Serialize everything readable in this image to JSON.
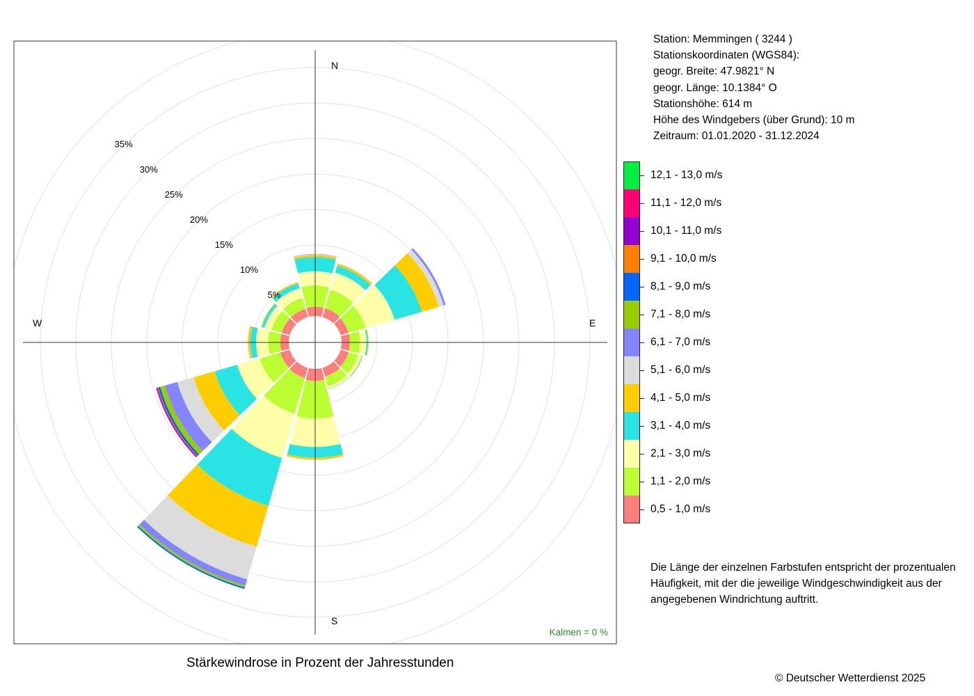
{
  "station": {
    "line_station": "Station:  Memmingen  ( 3244 )",
    "line_coords_heading": "Stationskoordinaten (WGS84):",
    "line_lat": "geogr. Breite: 47.9821° N",
    "line_lon": "geogr. Länge: 10.1384° O",
    "line_height": "Stationshöhe: 614 m",
    "line_sensor": "Höhe des Windgebers (über Grund): 10 m",
    "line_period": "Zeitraum: 01.01.2020 - 31.12.2024"
  },
  "legend": [
    {
      "label": "12,1 - 13,0 m/s",
      "color": "#00ee44"
    },
    {
      "label": "11,1 - 12,0 m/s",
      "color": "#ff0077"
    },
    {
      "label": "10,1 - 11,0 m/s",
      "color": "#9400d3"
    },
    {
      "label": "9,1 - 10,0 m/s",
      "color": "#ff8000"
    },
    {
      "label": "8,1 - 9,0 m/s",
      "color": "#0066ff"
    },
    {
      "label": "7,1 - 8,0 m/s",
      "color": "#99cc00"
    },
    {
      "label": "6,1 - 7,0 m/s",
      "color": "#8585ff"
    },
    {
      "label": "5,1 - 6,0 m/s",
      "color": "#dcdcdc"
    },
    {
      "label": "4,1 - 5,0 m/s",
      "color": "#ffcc00"
    },
    {
      "label": "3,1 - 4,0 m/s",
      "color": "#2ae3e3"
    },
    {
      "label": "2,1 - 3,0 m/s",
      "color": "#ffffaa"
    },
    {
      "label": "1,1 - 2,0 m/s",
      "color": "#bbff33"
    },
    {
      "label": "0,5 - 1,0 m/s",
      "color": "#ff7f7f"
    }
  ],
  "note": "Die Länge der einzelnen Farbstufen entspricht der prozentualen Häufigkeit, mit der die jeweilige Windgeschwindigkeit aus der angegebenen Windrichtung auftritt.",
  "title": "Stärkewindrose in Prozent der Jahresstunden",
  "calm": "Kalmen  =  0 %",
  "copyright": "© Deutscher Wetterdienst  2025",
  "compass": {
    "n": "N",
    "e": "E",
    "s": "S",
    "w": "W"
  },
  "chart_data": {
    "type": "polar-stacked-bar",
    "unit": "%",
    "radial_ticks": [
      "5%",
      "10%",
      "15%",
      "20%",
      "25%",
      "30%",
      "35%"
    ],
    "radial_tick_values": [
      5,
      10,
      15,
      20,
      25,
      30,
      35
    ],
    "radial_max": 40,
    "grid": true,
    "sector_width_deg": 30,
    "directions_deg": [
      0,
      30,
      60,
      90,
      120,
      150,
      180,
      210,
      240,
      270,
      300,
      330
    ],
    "speed_classes": [
      "0,5 - 1,0 m/s",
      "1,1 - 2,0 m/s",
      "2,1 - 3,0 m/s",
      "3,1 - 4,0 m/s",
      "4,1 - 5,0 m/s",
      "5,1 - 6,0 m/s",
      "6,1 - 7,0 m/s",
      "7,1 - 8,0 m/s",
      "8,1 - 9,0 m/s",
      "9,1 - 10,0 m/s",
      "10,1 - 11,0 m/s",
      "11,1 - 12,0 m/s",
      "12,1 - 13,0 m/s"
    ],
    "values": [
      [
        1.3,
        3.0,
        2.0,
        2.0,
        0.3,
        0.1,
        0.05,
        0,
        0,
        0,
        0,
        0,
        0
      ],
      [
        1.3,
        2.7,
        2.5,
        1.0,
        0.3,
        0.1,
        0,
        0,
        0,
        0,
        0,
        0,
        0
      ],
      [
        1.2,
        2.5,
        4.2,
        4.0,
        2.5,
        0.7,
        0.3,
        0,
        0,
        0,
        0,
        0,
        0
      ],
      [
        1.2,
        1.4,
        0.9,
        0.2,
        0.1,
        0.05,
        0,
        0,
        0,
        0,
        0,
        0,
        0
      ],
      [
        1.2,
        1.4,
        0.5,
        0.1,
        0.05,
        0,
        0,
        0,
        0,
        0,
        0,
        0,
        0
      ],
      [
        1.3,
        1.4,
        0.4,
        0.05,
        0,
        0,
        0,
        0,
        0,
        0,
        0,
        0,
        0
      ],
      [
        1.7,
        5.3,
        4.0,
        1.5,
        0.3,
        0.05,
        0,
        0,
        0,
        0,
        0,
        0,
        0
      ],
      [
        1.5,
        5.2,
        6.5,
        7.0,
        6.0,
        4.8,
        0.9,
        0.3,
        0.2,
        0,
        0,
        0,
        0
      ],
      [
        1.4,
        3.0,
        3.3,
        3.3,
        3.1,
        2.4,
        1.8,
        0.7,
        0.3,
        0.1,
        0.1,
        0.1,
        0
      ],
      [
        1.2,
        1.7,
        1.7,
        0.8,
        0.3,
        0.1,
        0,
        0,
        0,
        0,
        0,
        0,
        0
      ],
      [
        1.2,
        1.5,
        1.0,
        0.4,
        0.1,
        0,
        0,
        0,
        0,
        0,
        0,
        0,
        0
      ],
      [
        1.2,
        1.6,
        1.4,
        0.7,
        0.2,
        0,
        0,
        0,
        0,
        0,
        0,
        0,
        0
      ]
    ]
  }
}
